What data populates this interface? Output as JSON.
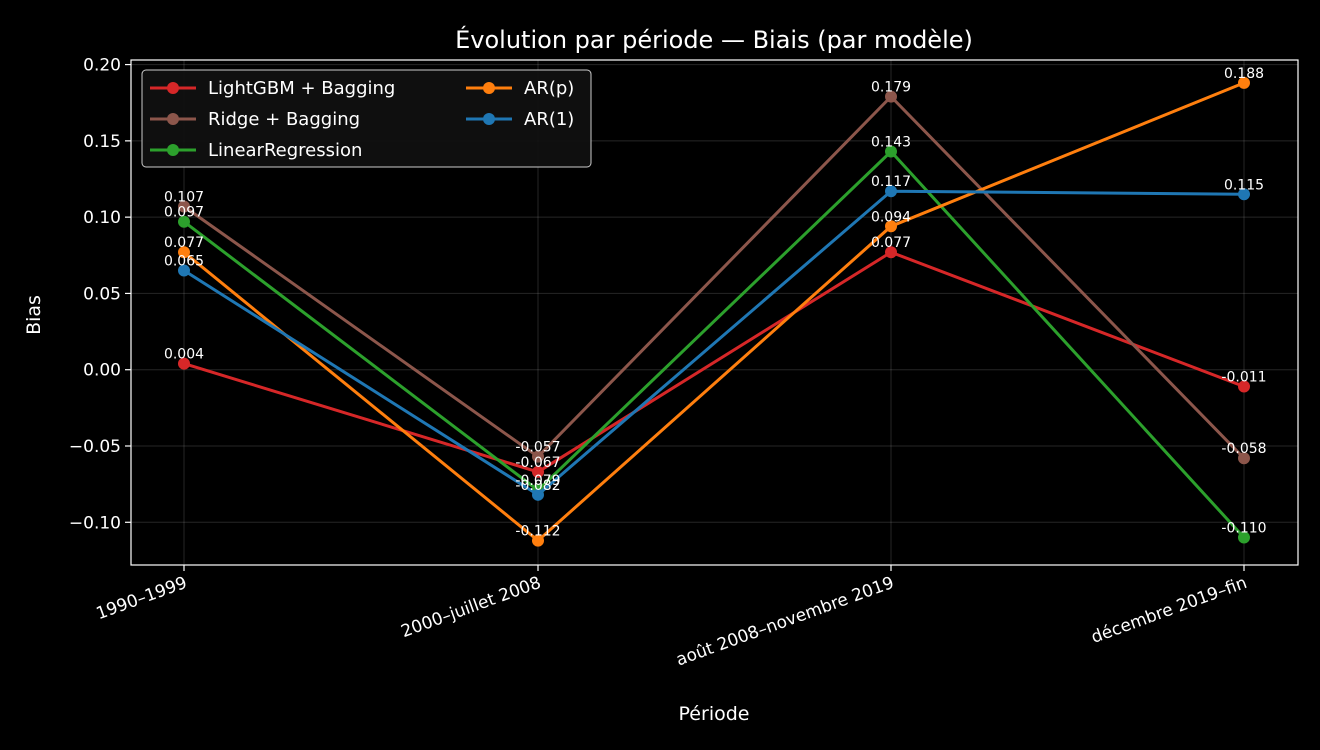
{
  "chart_data": {
    "type": "line",
    "title": "Évolution par période — Biais (par modèle)",
    "xlabel": "Période",
    "ylabel": "Bias",
    "categories": [
      "1990–1999",
      "2000–juillet 2008",
      "août 2008–novembre 2019",
      "décembre 2019–fin"
    ],
    "ylim": [
      -0.128,
      0.203
    ],
    "yticks": [
      -0.1,
      -0.05,
      0.0,
      0.05,
      0.1,
      0.15,
      0.2
    ],
    "ytick_labels": [
      "−0.10",
      "−0.05",
      "0.00",
      "0.05",
      "0.10",
      "0.15",
      "0.20"
    ],
    "grid": true,
    "legend_position": "top-left",
    "series": [
      {
        "name": "LightGBM + Bagging",
        "color": "#d62728",
        "values": [
          0.004,
          -0.067,
          0.077,
          -0.011
        ],
        "labels": [
          "0.004",
          "-0.067",
          "0.077",
          "-0.011"
        ]
      },
      {
        "name": "Ridge + Bagging",
        "color": "#8c564b",
        "values": [
          0.107,
          -0.057,
          0.179,
          -0.058
        ],
        "labels": [
          "0.107",
          "-0.057",
          "0.179",
          "-0.058"
        ]
      },
      {
        "name": "LinearRegression",
        "color": "#2ca02c",
        "values": [
          0.097,
          -0.079,
          0.143,
          -0.11
        ],
        "labels": [
          "0.097",
          "-0.079",
          "0.143",
          "-0.110"
        ]
      },
      {
        "name": "AR(p)",
        "color": "#ff7f0e",
        "values": [
          0.077,
          -0.112,
          0.094,
          0.188
        ],
        "labels": [
          "0.077",
          "-0.112",
          "0.094",
          "0.188"
        ]
      },
      {
        "name": "AR(1)",
        "color": "#1f77b4",
        "values": [
          0.065,
          -0.082,
          0.117,
          0.115
        ],
        "labels": [
          "0.065",
          "-0.082",
          "0.117",
          "0.115"
        ]
      }
    ]
  }
}
